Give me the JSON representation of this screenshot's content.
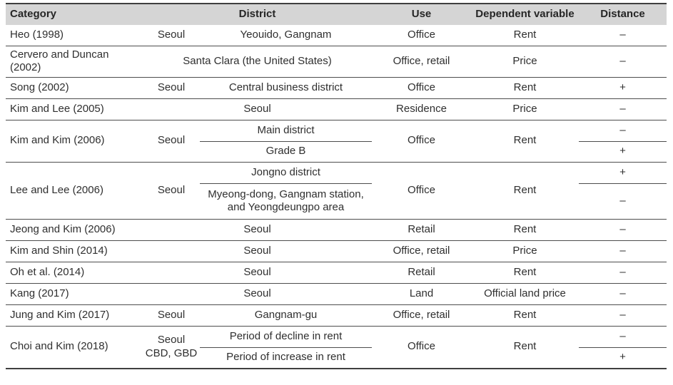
{
  "table": {
    "header": {
      "category": "Category",
      "district": "District",
      "use": "Use",
      "dependent_variable": "Dependent variable",
      "distance": "Distance"
    },
    "rows": [
      {
        "category": "Heo (1998)",
        "city": "Seoul",
        "district": "Yeouido, Gangnam",
        "use": "Office",
        "dependent_variable": "Rent",
        "distance": "–"
      },
      {
        "category": "Cervero and Duncan\n(2002)",
        "location": "Santa Clara (the United States)",
        "use": "Office, retail",
        "dependent_variable": "Price",
        "distance": "–"
      },
      {
        "category": "Song (2002)",
        "city": "Seoul",
        "district": "Central business district",
        "use": "Office",
        "dependent_variable": "Rent",
        "distance": "+"
      },
      {
        "category": "Kim and Lee (2005)",
        "location": "Seoul",
        "use": "Residence",
        "dependent_variable": "Price",
        "distance": "–"
      },
      {
        "category": "Kim and Kim (2006)",
        "city": "Seoul",
        "district_sub": [
          "Main district",
          "Grade B"
        ],
        "use": "Office",
        "dependent_variable": "Rent",
        "distance_sub": [
          "–",
          "+"
        ]
      },
      {
        "category": "Lee and Lee (2006)",
        "city": "Seoul",
        "district_sub": [
          "Jongno district",
          "Myeong-dong, Gangnam station,\nand Yeongdeungpo area"
        ],
        "use": "Office",
        "dependent_variable": "Rent",
        "distance_sub": [
          "+",
          "–"
        ]
      },
      {
        "category": "Jeong and Kim (2006)",
        "location": "Seoul",
        "use": "Retail",
        "dependent_variable": "Rent",
        "distance": "–"
      },
      {
        "category": "Kim and Shin (2014)",
        "location": "Seoul",
        "use": "Office, retail",
        "dependent_variable": "Price",
        "distance": "–"
      },
      {
        "category": "Oh et al. (2014)",
        "location": "Seoul",
        "use": "Retail",
        "dependent_variable": "Rent",
        "distance": "–"
      },
      {
        "category": "Kang (2017)",
        "location": "Seoul",
        "use": "Land",
        "dependent_variable": "Official land price",
        "distance": "–"
      },
      {
        "category": "Jung and Kim (2017)",
        "city": "Seoul",
        "district": "Gangnam-gu",
        "use": "Office, retail",
        "dependent_variable": "Rent",
        "distance": "–"
      },
      {
        "category": "Choi and Kim (2018)",
        "city": "Seoul\nCBD, GBD",
        "district_sub": [
          "Period of decline in rent",
          "Period of increase in rent"
        ],
        "use": "Office",
        "dependent_variable": "Rent",
        "distance_sub": [
          "–",
          "+"
        ]
      }
    ]
  },
  "colors": {
    "header_bg": "#d5d5d5",
    "text": "#2f2f2f",
    "rule": "#4d4d4d",
    "outer_rule": "#3f3f3f"
  }
}
